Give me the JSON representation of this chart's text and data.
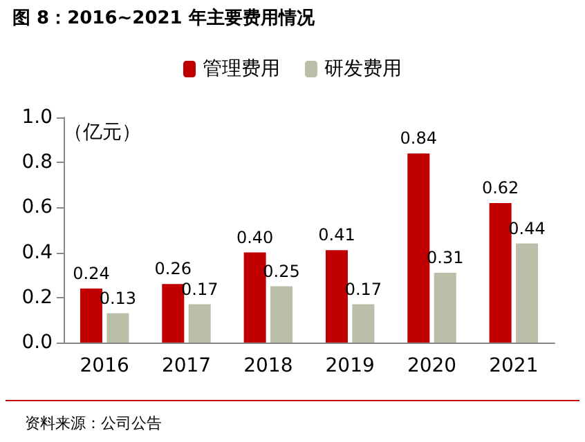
{
  "chart_data": {
    "type": "bar",
    "title": "图 8：2016~2021 年主要费用情况",
    "ylabel": "（亿元）",
    "categories": [
      "2016",
      "2017",
      "2018",
      "2019",
      "2020",
      "2021"
    ],
    "series": [
      {
        "name": "管理费用",
        "color": "#c00000",
        "values": [
          0.24,
          0.26,
          0.4,
          0.41,
          0.84,
          0.62
        ],
        "value_labels": [
          "0.24",
          "0.26",
          "0.40",
          "0.41",
          "0.84",
          "0.62"
        ]
      },
      {
        "name": "研发费用",
        "color": "#b9bfa9",
        "values": [
          0.13,
          0.17,
          0.25,
          0.17,
          0.31,
          0.44
        ],
        "value_labels": [
          "0.13",
          "0.17",
          "0.25",
          "0.17",
          "0.31",
          "0.44"
        ]
      }
    ],
    "ylim": [
      0,
      1.0
    ],
    "yticks": [
      {
        "value": 0,
        "label": "0.0"
      },
      {
        "value": 0.2,
        "label": "0.2"
      },
      {
        "value": 0.4,
        "label": "0.4"
      },
      {
        "value": 0.6,
        "label": "0.6"
      },
      {
        "value": 0.8,
        "label": "0.8"
      },
      {
        "value": 1.0,
        "label": "1.0"
      }
    ],
    "grid": false,
    "legend": "top",
    "annotations": [
      "资料来源：公司公告"
    ]
  }
}
